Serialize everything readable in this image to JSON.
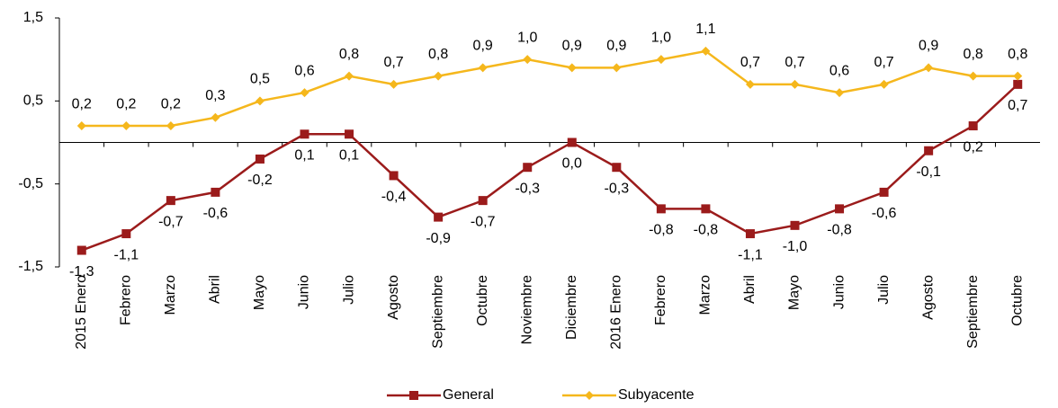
{
  "chart_data": {
    "type": "line",
    "categories": [
      "2015 Enero",
      "Febrero",
      "Marzo",
      "Abril",
      "Mayo",
      "Junio",
      "Julio",
      "Agosto",
      "Septiembre",
      "Octubre",
      "Noviembre",
      "Diciembre",
      "2016 Enero",
      "Febrero",
      "Marzo",
      "Abril",
      "Mayo",
      "Junio",
      "Julio",
      "Agosto",
      "Septiembre",
      "Octubre"
    ],
    "series": [
      {
        "name": "General",
        "color": "#9b1b1b",
        "marker": "square",
        "values": [
          -1.3,
          -1.1,
          -0.7,
          -0.6,
          -0.2,
          0.1,
          0.1,
          -0.4,
          -0.9,
          -0.7,
          -0.3,
          0.0,
          -0.3,
          -0.8,
          -0.8,
          -1.1,
          -1.0,
          -0.8,
          -0.6,
          -0.1,
          0.2,
          0.7
        ],
        "value_labels": [
          "-1,3",
          "-1,1",
          "-0,7",
          "-0,6",
          "-0,2",
          "0,1",
          "0,1",
          "-0,4",
          "-0,9",
          "-0,7",
          "-0,3",
          "0,0",
          "-0,3",
          "-0,8",
          "-0,8",
          "-1,1",
          "-1,0",
          "-0,8",
          "-0,6",
          "-0,1",
          "0,2",
          "0,7"
        ]
      },
      {
        "name": "Subyacente",
        "color": "#f5b71c",
        "marker": "diamond",
        "values": [
          0.2,
          0.2,
          0.2,
          0.3,
          0.5,
          0.6,
          0.8,
          0.7,
          0.8,
          0.9,
          1.0,
          0.9,
          0.9,
          1.0,
          1.1,
          0.7,
          0.7,
          0.6,
          0.7,
          0.9,
          0.8,
          0.8
        ],
        "value_labels": [
          "0,2",
          "0,2",
          "0,2",
          "0,3",
          "0,5",
          "0,6",
          "0,8",
          "0,7",
          "0,8",
          "0,9",
          "1,0",
          "0,9",
          "0,9",
          "1,0",
          "1,1",
          "0,7",
          "0,7",
          "0,6",
          "0,7",
          "0,9",
          "0,8",
          "0,8"
        ]
      }
    ],
    "ylim": [
      -1.5,
      1.5
    ],
    "yticks": [
      {
        "value": -1.5,
        "label": "-1,5"
      },
      {
        "value": -0.5,
        "label": "-0,5"
      },
      {
        "value": 0.5,
        "label": "0,5"
      },
      {
        "value": 1.5,
        "label": "1,5"
      }
    ],
    "legend": "bottom"
  }
}
